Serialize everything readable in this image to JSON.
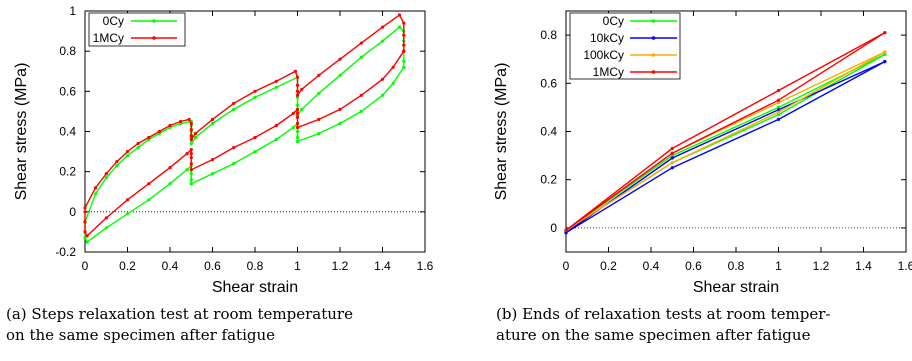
{
  "chart_data": [
    {
      "type": "line",
      "xlabel": "Shear strain",
      "ylabel": "Shear stress (MPa)",
      "xlim": [
        0,
        1.6
      ],
      "ylim": [
        -0.2,
        1.0
      ],
      "xticks": [
        "0",
        "0.2",
        "0.4",
        "0.6",
        "0.8",
        "1",
        "1.2",
        "1.4",
        "1.6"
      ],
      "yticks": [
        "-0.2",
        "0",
        "0.2",
        "0.4",
        "0.6",
        "0.8",
        "1"
      ],
      "caption": [
        "(a) Steps relaxation test at room temperature",
        "on the same specimen after fatigue"
      ],
      "legend": "top-left",
      "grid": false,
      "series": [
        {
          "name": "0Cy",
          "color": "#00ff00",
          "loading": [
            [
              0,
              -0.05
            ],
            [
              0.05,
              0.09
            ],
            [
              0.1,
              0.17
            ],
            [
              0.15,
              0.23
            ],
            [
              0.2,
              0.28
            ],
            [
              0.25,
              0.32
            ],
            [
              0.3,
              0.36
            ],
            [
              0.35,
              0.39
            ],
            [
              0.4,
              0.42
            ],
            [
              0.45,
              0.44
            ],
            [
              0.5,
              0.45
            ],
            [
              0.5,
              0.43
            ],
            [
              0.5,
              0.4
            ],
            [
              0.5,
              0.37
            ],
            [
              0.5,
              0.34
            ],
            [
              0.52,
              0.37
            ],
            [
              0.6,
              0.44
            ],
            [
              0.7,
              0.51
            ],
            [
              0.8,
              0.57
            ],
            [
              0.9,
              0.62
            ],
            [
              1.0,
              0.67
            ],
            [
              1.0,
              0.63
            ],
            [
              1.0,
              0.57
            ],
            [
              1.0,
              0.53
            ],
            [
              1.0,
              0.5
            ],
            [
              1.0,
              0.48
            ],
            [
              1.02,
              0.51
            ],
            [
              1.1,
              0.59
            ],
            [
              1.2,
              0.68
            ],
            [
              1.3,
              0.77
            ],
            [
              1.4,
              0.85
            ],
            [
              1.48,
              0.92
            ],
            [
              1.5,
              0.9
            ],
            [
              1.5,
              0.85
            ],
            [
              1.5,
              0.8
            ],
            [
              1.5,
              0.75
            ],
            [
              1.5,
              0.72
            ]
          ],
          "unloading": [
            [
              1.5,
              0.72
            ],
            [
              1.45,
              0.64
            ],
            [
              1.4,
              0.58
            ],
            [
              1.3,
              0.5
            ],
            [
              1.2,
              0.44
            ],
            [
              1.1,
              0.39
            ],
            [
              1.0,
              0.35
            ],
            [
              1.0,
              0.37
            ],
            [
              1.0,
              0.4
            ],
            [
              1.0,
              0.42
            ],
            [
              1.0,
              0.44
            ],
            [
              0.98,
              0.42
            ],
            [
              0.9,
              0.36
            ],
            [
              0.8,
              0.3
            ],
            [
              0.7,
              0.24
            ],
            [
              0.6,
              0.19
            ],
            [
              0.5,
              0.14
            ],
            [
              0.5,
              0.16
            ],
            [
              0.5,
              0.19
            ],
            [
              0.5,
              0.21
            ],
            [
              0.5,
              0.23
            ],
            [
              0.48,
              0.21
            ],
            [
              0.4,
              0.14
            ],
            [
              0.3,
              0.06
            ],
            [
              0.2,
              -0.01
            ],
            [
              0.1,
              -0.08
            ],
            [
              0.01,
              -0.15
            ],
            [
              0,
              -0.13
            ],
            [
              0,
              -0.1
            ],
            [
              0,
              -0.05
            ]
          ]
        },
        {
          "name": "1MCy",
          "color": "#ff0000",
          "loading": [
            [
              0,
              0.02
            ],
            [
              0.05,
              0.12
            ],
            [
              0.1,
              0.19
            ],
            [
              0.15,
              0.25
            ],
            [
              0.2,
              0.3
            ],
            [
              0.25,
              0.34
            ],
            [
              0.3,
              0.37
            ],
            [
              0.35,
              0.4
            ],
            [
              0.4,
              0.43
            ],
            [
              0.45,
              0.45
            ],
            [
              0.49,
              0.46
            ],
            [
              0.5,
              0.44
            ],
            [
              0.5,
              0.41
            ],
            [
              0.5,
              0.38
            ],
            [
              0.5,
              0.36
            ],
            [
              0.52,
              0.39
            ],
            [
              0.6,
              0.46
            ],
            [
              0.7,
              0.54
            ],
            [
              0.8,
              0.6
            ],
            [
              0.9,
              0.65
            ],
            [
              0.99,
              0.7
            ],
            [
              1.0,
              0.67
            ],
            [
              1.0,
              0.63
            ],
            [
              1.0,
              0.6
            ],
            [
              1.0,
              0.58
            ],
            [
              1.02,
              0.61
            ],
            [
              1.1,
              0.68
            ],
            [
              1.2,
              0.76
            ],
            [
              1.3,
              0.84
            ],
            [
              1.4,
              0.92
            ],
            [
              1.48,
              0.98
            ],
            [
              1.5,
              0.94
            ],
            [
              1.5,
              0.88
            ],
            [
              1.5,
              0.83
            ],
            [
              1.5,
              0.8
            ]
          ],
          "unloading": [
            [
              1.5,
              0.8
            ],
            [
              1.45,
              0.72
            ],
            [
              1.4,
              0.66
            ],
            [
              1.3,
              0.58
            ],
            [
              1.2,
              0.51
            ],
            [
              1.1,
              0.46
            ],
            [
              1.0,
              0.42
            ],
            [
              1.0,
              0.44
            ],
            [
              1.0,
              0.47
            ],
            [
              1.0,
              0.49
            ],
            [
              1.0,
              0.51
            ],
            [
              0.98,
              0.49
            ],
            [
              0.9,
              0.43
            ],
            [
              0.8,
              0.37
            ],
            [
              0.7,
              0.32
            ],
            [
              0.6,
              0.26
            ],
            [
              0.5,
              0.21
            ],
            [
              0.5,
              0.24
            ],
            [
              0.5,
              0.27
            ],
            [
              0.5,
              0.29
            ],
            [
              0.5,
              0.31
            ],
            [
              0.48,
              0.29
            ],
            [
              0.4,
              0.22
            ],
            [
              0.3,
              0.14
            ],
            [
              0.2,
              0.06
            ],
            [
              0.1,
              -0.03
            ],
            [
              0.01,
              -0.12
            ],
            [
              0,
              -0.1
            ],
            [
              0,
              -0.05
            ],
            [
              0,
              0.0
            ]
          ]
        }
      ]
    },
    {
      "type": "line",
      "xlabel": "Shear strain",
      "ylabel": "Shear stress (MPa)",
      "xlim": [
        0,
        1.6
      ],
      "ylim": [
        -0.1,
        0.9
      ],
      "xticks": [
        "0",
        "0.2",
        "0.4",
        "0.6",
        "0.8",
        "1",
        "1.2",
        "1.4",
        "1.6"
      ],
      "yticks": [
        "0",
        "0.2",
        "0.4",
        "0.6",
        "0.8"
      ],
      "caption": [
        "(b) Ends of relaxation tests at room temper-",
        "ature on the same specimen after fatigue"
      ],
      "legend": "top-left",
      "grid": false,
      "series": [
        {
          "name": "0Cy",
          "color": "#00ff00",
          "upper": [
            [
              0,
              -0.01
            ],
            [
              0.5,
              0.3
            ],
            [
              1.0,
              0.5
            ],
            [
              1.5,
              0.72
            ]
          ],
          "lower": [
            [
              0,
              -0.01
            ],
            [
              0.5,
              0.27
            ],
            [
              1.0,
              0.47
            ],
            [
              1.5,
              0.72
            ]
          ]
        },
        {
          "name": "10kCy",
          "color": "#0000ff",
          "upper": [
            [
              0,
              -0.02
            ],
            [
              0.5,
              0.29
            ],
            [
              1.0,
              0.49
            ],
            [
              1.5,
              0.69
            ]
          ],
          "lower": [
            [
              0,
              -0.02
            ],
            [
              0.5,
              0.25
            ],
            [
              1.0,
              0.45
            ],
            [
              1.5,
              0.69
            ]
          ]
        },
        {
          "name": "100kCy",
          "color": "#ffaa00",
          "upper": [
            [
              0,
              -0.01
            ],
            [
              0.5,
              0.31
            ],
            [
              1.0,
              0.52
            ],
            [
              1.5,
              0.73
            ]
          ],
          "lower": [
            [
              0,
              -0.01
            ],
            [
              0.5,
              0.27
            ],
            [
              1.0,
              0.48
            ],
            [
              1.5,
              0.73
            ]
          ]
        },
        {
          "name": "1MCy",
          "color": "#ff0000",
          "upper": [
            [
              0,
              -0.01
            ],
            [
              0.5,
              0.33
            ],
            [
              1.0,
              0.57
            ],
            [
              1.5,
              0.81
            ]
          ],
          "lower": [
            [
              0,
              -0.01
            ],
            [
              0.5,
              0.31
            ],
            [
              1.0,
              0.53
            ],
            [
              1.5,
              0.81
            ]
          ]
        }
      ]
    }
  ]
}
